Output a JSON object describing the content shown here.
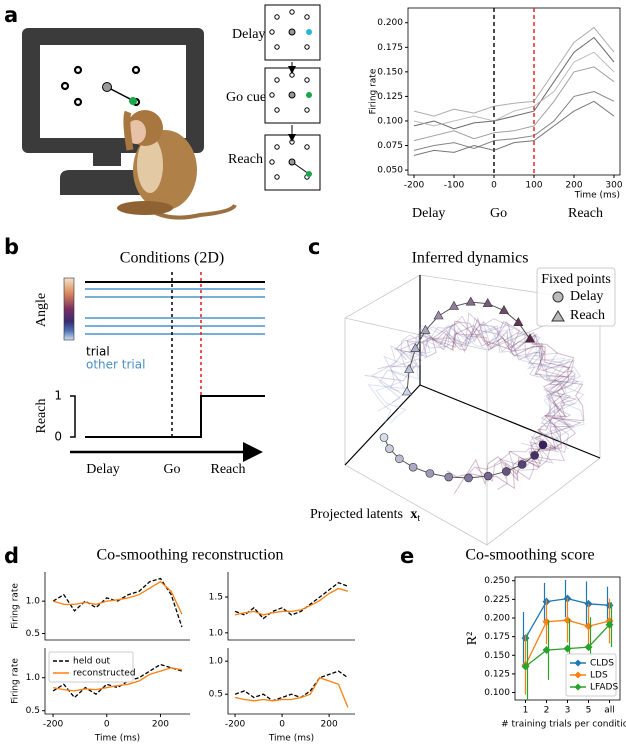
{
  "figure": {
    "a": {
      "label": "a",
      "conditions": [
        "Delay",
        "Go cue",
        "Reach"
      ],
      "phases": [
        "Delay",
        "Go",
        "Reach"
      ]
    },
    "b": {
      "label": "b",
      "title": "Conditions (2D)",
      "angle_label": "Angle",
      "reach_label": "Reach",
      "reach_ticks": [
        1,
        0
      ],
      "legend": [
        "trial",
        "other trial"
      ],
      "phases": [
        "Delay",
        "Go",
        "Reach"
      ]
    },
    "c": {
      "label": "c",
      "title": "Inferred dynamics",
      "legend_title": "Fixed points",
      "legend": [
        "Delay",
        "Reach"
      ],
      "axis_label": "Projected latents",
      "axis_symbol": "x",
      "axis_subscript": "t"
    },
    "d": {
      "label": "d",
      "title": "Co-smoothing reconstruction"
    },
    "e": {
      "label": "e",
      "title": "Co-smoothing score"
    }
  },
  "chart_data": [
    {
      "type": "line",
      "x_label": "Time (ms)",
      "y_label": "Firing rate",
      "x": [
        -200,
        -150,
        -100,
        -50,
        0,
        50,
        100,
        150,
        200,
        250,
        300
      ],
      "xlim": [
        -215,
        315
      ],
      "xticks": [
        -200,
        -100,
        0,
        100,
        200,
        300
      ],
      "ylim": [
        0.045,
        0.215
      ],
      "yticks": [
        {
          "value": 0.05,
          "label": "0.050"
        },
        {
          "value": 0.075,
          "label": "0.075"
        },
        {
          "value": 0.1,
          "label": "0.100"
        },
        {
          "value": 0.125,
          "label": "0.125"
        },
        {
          "value": 0.15,
          "label": "0.150"
        },
        {
          "value": 0.175,
          "label": "0.175"
        },
        {
          "value": 0.2,
          "label": "0.200"
        }
      ],
      "vlines": [
        {
          "x": 0,
          "color": "#000000"
        },
        {
          "x": 100,
          "color": "#e41a1c"
        }
      ],
      "series": [
        {
          "color": "#444444",
          "values": [
            0.095,
            0.1,
            0.092,
            0.098,
            0.1,
            0.105,
            0.11,
            0.14,
            0.17,
            0.185,
            0.16
          ]
        },
        {
          "color": "#888888",
          "values": [
            0.08,
            0.085,
            0.09,
            0.082,
            0.088,
            0.09,
            0.095,
            0.12,
            0.15,
            0.155,
            0.14
          ]
        },
        {
          "color": "#999999",
          "values": [
            0.11,
            0.105,
            0.112,
            0.108,
            0.115,
            0.118,
            0.12,
            0.15,
            0.18,
            0.195,
            0.17
          ]
        },
        {
          "color": "#666666",
          "values": [
            0.07,
            0.075,
            0.078,
            0.072,
            0.08,
            0.082,
            0.085,
            0.1,
            0.125,
            0.13,
            0.12
          ]
        },
        {
          "color": "#aaaaaa",
          "values": [
            0.1,
            0.095,
            0.1,
            0.105,
            0.1,
            0.11,
            0.115,
            0.13,
            0.16,
            0.17,
            0.15
          ]
        },
        {
          "color": "#555555",
          "values": [
            0.065,
            0.07,
            0.068,
            0.075,
            0.07,
            0.078,
            0.08,
            0.095,
            0.11,
            0.12,
            0.105
          ]
        }
      ]
    },
    {
      "type": "line",
      "y_label": "Firing rate",
      "x": [
        -200,
        -160,
        -120,
        -80,
        -40,
        0,
        40,
        80,
        120,
        160,
        200,
        240,
        280
      ],
      "xlim": [
        -230,
        310
      ],
      "ylim": [
        0.4,
        1.45
      ],
      "yticks": [
        0.5,
        {
          "value": 1.0,
          "label": "1.0"
        }
      ],
      "series": [
        {
          "color": "#000000",
          "dash": true,
          "values": [
            1.0,
            1.1,
            0.85,
            1.0,
            0.9,
            1.05,
            1.0,
            1.1,
            1.15,
            1.3,
            1.35,
            1.1,
            0.6
          ]
        },
        {
          "color": "#ff7f0e",
          "values": [
            1.0,
            0.95,
            0.95,
            0.98,
            0.95,
            1.0,
            1.02,
            1.05,
            1.1,
            1.2,
            1.3,
            1.15,
            0.8
          ]
        }
      ]
    },
    {
      "type": "line",
      "x": [
        -200,
        -160,
        -120,
        -80,
        -40,
        0,
        40,
        80,
        120,
        160,
        200,
        240,
        280
      ],
      "xlim": [
        -230,
        310
      ],
      "ylim": [
        0.9,
        1.85
      ],
      "yticks": [
        {
          "value": 1.0,
          "label": "1.0"
        },
        1.5
      ],
      "series": [
        {
          "color": "#000000",
          "dash": true,
          "values": [
            1.3,
            1.25,
            1.35,
            1.2,
            1.3,
            1.35,
            1.25,
            1.3,
            1.4,
            1.5,
            1.6,
            1.7,
            1.65
          ]
        },
        {
          "color": "#ff7f0e",
          "values": [
            1.25,
            1.28,
            1.3,
            1.25,
            1.28,
            1.3,
            1.3,
            1.32,
            1.38,
            1.45,
            1.55,
            1.62,
            1.58
          ]
        }
      ]
    },
    {
      "type": "line",
      "y_label": "Firing rate",
      "x_label": "Time (ms)",
      "x": [
        -200,
        -160,
        -120,
        -80,
        -40,
        0,
        40,
        80,
        120,
        160,
        200,
        240,
        280
      ],
      "xlim": [
        -230,
        310
      ],
      "xticks": [
        -200,
        0,
        200
      ],
      "ylim": [
        0.45,
        1.45
      ],
      "yticks": [
        0.5,
        {
          "value": 1.0,
          "label": "1.0"
        }
      ],
      "legend": "upper left",
      "series": [
        {
          "name": "held out",
          "color": "#000000",
          "dash": true,
          "values": [
            0.8,
            0.9,
            0.7,
            0.85,
            0.75,
            0.9,
            0.85,
            0.95,
            1.0,
            1.1,
            1.2,
            1.15,
            1.1
          ]
        },
        {
          "name": "reconstructed",
          "color": "#ff7f0e",
          "values": [
            0.85,
            0.82,
            0.8,
            0.83,
            0.82,
            0.85,
            0.88,
            0.9,
            0.95,
            1.05,
            1.1,
            1.15,
            1.12
          ]
        }
      ]
    },
    {
      "type": "line",
      "x_label": "Time (ms)",
      "x": [
        -200,
        -160,
        -120,
        -80,
        -40,
        0,
        40,
        80,
        120,
        160,
        200,
        240,
        280
      ],
      "xlim": [
        -230,
        310
      ],
      "xticks": [
        -200,
        0,
        200
      ],
      "ylim": [
        0.2,
        1.2
      ],
      "yticks": [
        0.5,
        {
          "value": 1.0,
          "label": "1.0"
        }
      ],
      "series": [
        {
          "color": "#000000",
          "dash": true,
          "values": [
            0.5,
            0.55,
            0.45,
            0.5,
            0.4,
            0.45,
            0.5,
            0.45,
            0.55,
            0.75,
            0.8,
            0.85,
            0.75
          ]
        },
        {
          "color": "#ff7f0e",
          "values": [
            0.45,
            0.42,
            0.4,
            0.42,
            0.4,
            0.42,
            0.42,
            0.45,
            0.5,
            0.75,
            0.7,
            0.65,
            0.3
          ]
        }
      ]
    },
    {
      "type": "line",
      "categories": [
        "1",
        "2",
        "3",
        "5",
        "all"
      ],
      "x_label": "# training trials per condition",
      "y_label": "R²",
      "ylim": [
        0.09,
        0.255
      ],
      "yticks": [
        {
          "value": 0.1,
          "label": "0.100"
        },
        {
          "value": 0.125,
          "label": "0.125"
        },
        {
          "value": 0.15,
          "label": "0.150"
        },
        {
          "value": 0.175,
          "label": "0.175"
        },
        {
          "value": 0.2,
          "label": "0.200"
        },
        {
          "value": 0.225,
          "label": "0.225"
        },
        {
          "value": 0.25,
          "label": "0.250"
        }
      ],
      "legend": "lower right",
      "series": [
        {
          "name": "CLDS",
          "color": "#1f77b4",
          "values": [
            0.173,
            0.222,
            0.226,
            0.219,
            0.217
          ],
          "errors": [
            0.035,
            0.025,
            0.025,
            0.03,
            0.025
          ]
        },
        {
          "name": "LDS",
          "color": "#ff7f0e",
          "values": [
            0.137,
            0.195,
            0.197,
            0.189,
            0.196
          ],
          "errors": [
            0.04,
            0.03,
            0.03,
            0.03,
            0.03
          ]
        },
        {
          "name": "LFADS",
          "color": "#2ca02c",
          "values": [
            0.135,
            0.157,
            0.159,
            0.161,
            0.191
          ],
          "errors": [
            0.045,
            0.04,
            0.04,
            0.04,
            0.03
          ]
        }
      ]
    }
  ]
}
